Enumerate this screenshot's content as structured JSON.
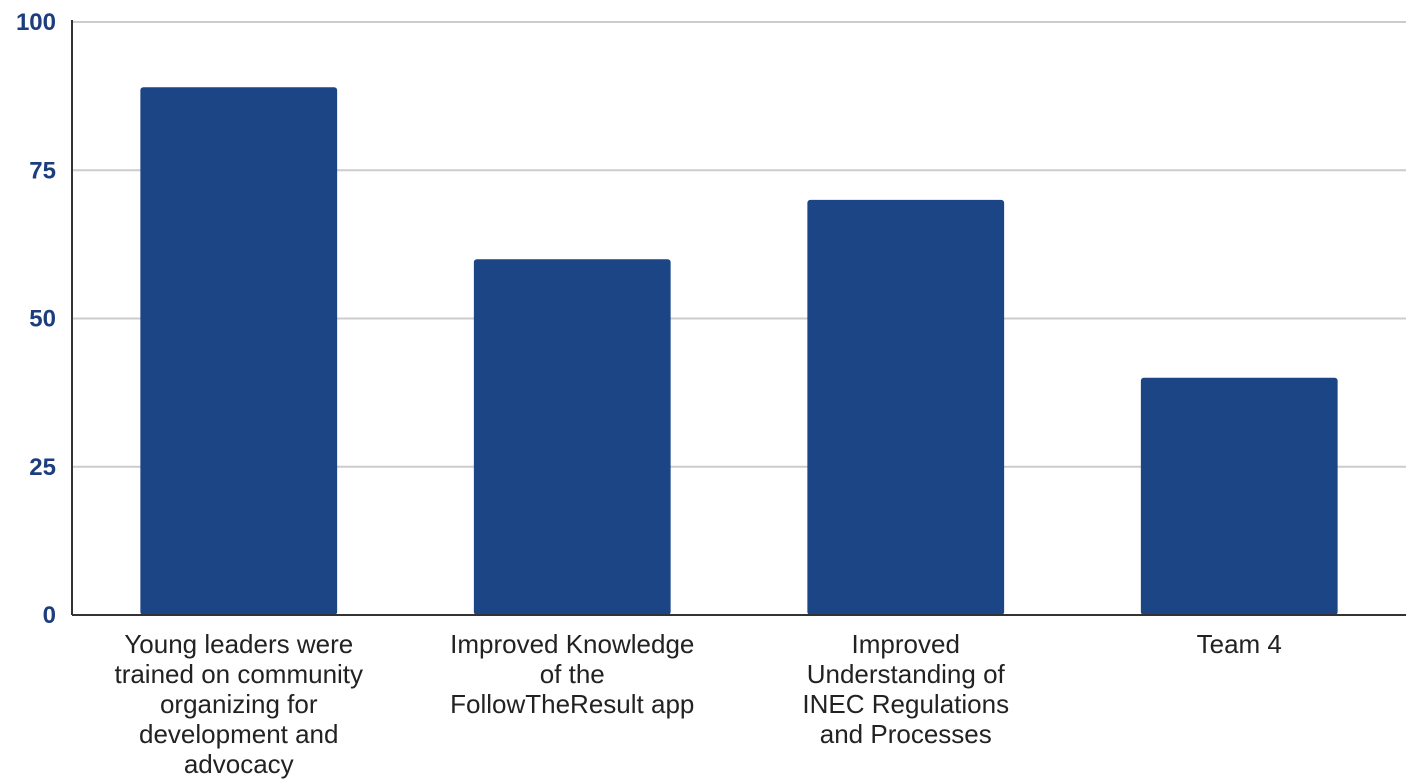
{
  "chart_data": {
    "type": "bar",
    "categories": [
      "Young leaders were trained on community organizing for development and advocacy",
      "Improved Knowledge of the FollowTheResult app",
      "Improved Understanding of INEC Regulations and Processes",
      "Team 4"
    ],
    "category_label_lines": [
      [
        "Young leaders were",
        "trained on community",
        "organizing for",
        "development and",
        "advocacy"
      ],
      [
        "Improved Knowledge",
        "of the",
        "FollowTheResult app"
      ],
      [
        "Improved",
        "Understanding of",
        "INEC Regulations",
        "and Processes"
      ],
      [
        "Team 4"
      ]
    ],
    "values": [
      89,
      60,
      70,
      40
    ],
    "title": "",
    "xlabel": "",
    "ylabel": "",
    "ylim": [
      0,
      100
    ],
    "yticks": [
      0,
      25,
      50,
      75,
      100
    ],
    "ytick_labels": [
      "0",
      "25",
      "50",
      "75",
      "100"
    ],
    "grid": true,
    "legend": "none",
    "colors": {
      "bar": "#1b4585",
      "tick_text": "#1c3d7e",
      "grid": "#cccccc",
      "axis": "#333333",
      "category_text": "#222222"
    }
  }
}
